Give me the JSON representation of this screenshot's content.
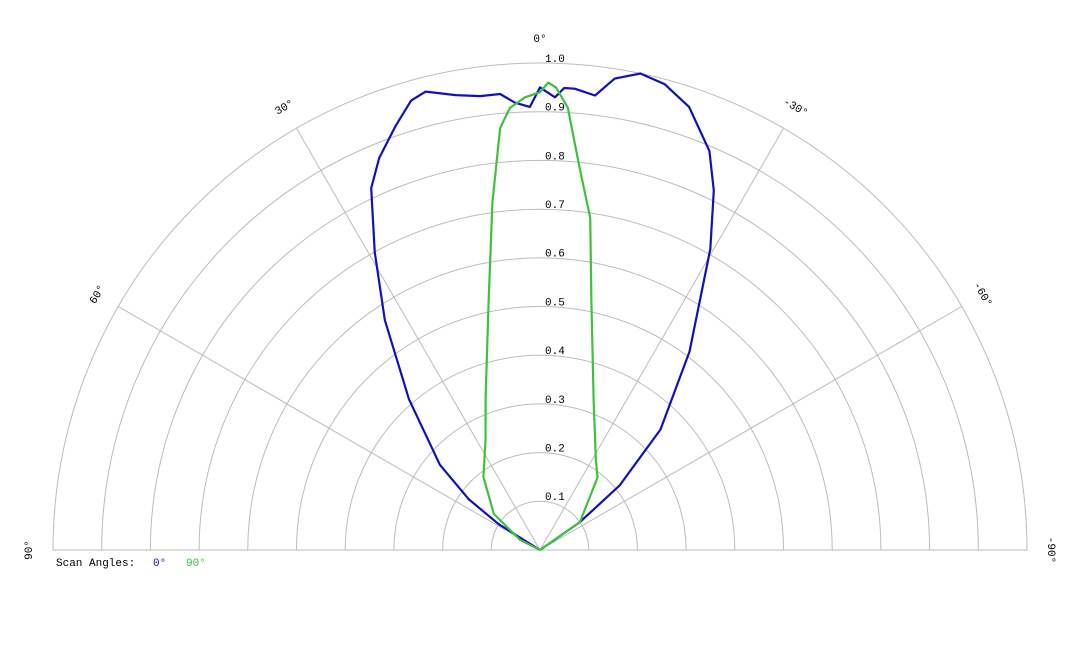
{
  "chart_data": {
    "type": "polar",
    "legend_title": "Scan Angles:",
    "ylim": [
      0,
      1
    ],
    "yticks": [
      0.1,
      0.2,
      0.3,
      0.4,
      0.5,
      0.6,
      0.7,
      0.8,
      0.9,
      {
        "value": 1,
        "label": "1.0"
      }
    ],
    "xlim": [
      90,
      -90
    ],
    "xticks": [
      {
        "value": 90,
        "label": "90°"
      },
      {
        "value": 60,
        "label": "60°"
      },
      {
        "value": 30,
        "label": "30°"
      },
      {
        "value": 0,
        "label": "0°"
      },
      {
        "value": -30,
        "label": "-30°"
      },
      {
        "value": -60,
        "label": "-60°"
      },
      {
        "value": -90,
        "label": "-90°"
      }
    ],
    "series": [
      {
        "name": "0°",
        "color": "#1010c0",
        "angles": [
          -90,
          -55,
          -51,
          -45,
          -37,
          -29.5,
          -25.8,
          -23,
          -18.6,
          -15,
          -11.9,
          -9,
          -6.9,
          -4.3,
          -3,
          -1.9,
          0,
          1.3,
          3.2,
          5,
          7.5,
          10.5,
          14,
          16,
          18.8,
          22.3,
          25,
          29,
          34,
          41,
          49.6,
          54.5,
          58,
          90
        ],
        "values": [
          0,
          0.1,
          0.21,
          0.35,
          0.51,
          0.71,
          0.82,
          0.89,
          0.96,
          0.99,
          1.0,
          0.98,
          0.94,
          0.95,
          0.95,
          0.93,
          0.95,
          0.91,
          0.92,
          0.94,
          0.94,
          0.95,
          0.97,
          0.96,
          0.92,
          0.87,
          0.82,
          0.7,
          0.57,
          0.41,
          0.27,
          0.18,
          0.1,
          0
        ]
      },
      {
        "name": "90°",
        "color": "#40c040",
        "angles": [
          -90,
          -55,
          -38.4,
          -31.4,
          -19.5,
          -11.7,
          -8.6,
          -5.9,
          -3.6,
          -2,
          -1,
          0,
          1.9,
          3.9,
          5.4,
          7.8,
          11.7,
          19.8,
          26.6,
          37.7,
          52,
          63,
          90
        ],
        "values": [
          0,
          0.1,
          0.19,
          0.22,
          0.33,
          0.52,
          0.69,
          0.79,
          0.91,
          0.95,
          0.96,
          0.94,
          0.93,
          0.91,
          0.87,
          0.72,
          0.52,
          0.33,
          0.25,
          0.19,
          0.12,
          0.046,
          0
        ]
      }
    ]
  }
}
